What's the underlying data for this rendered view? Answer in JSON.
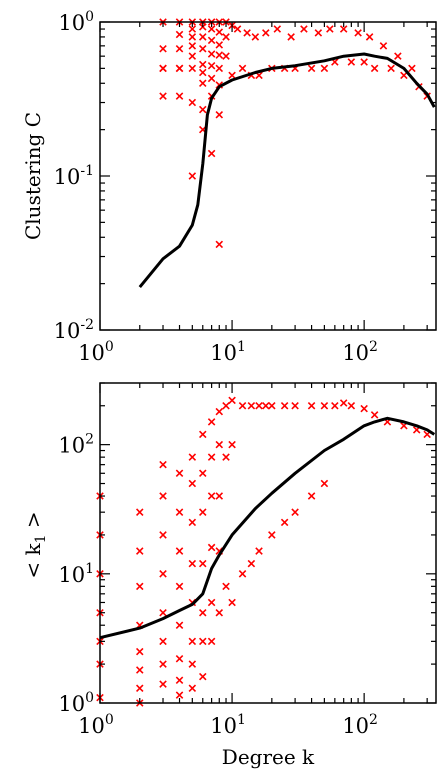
{
  "chart_data": [
    {
      "type": "scatter",
      "title": "",
      "xlabel": "",
      "ylabel": "Clustering C",
      "xscale": "log",
      "yscale": "log",
      "xlim": [
        1,
        350
      ],
      "ylim": [
        0.01,
        1
      ],
      "x_ticks": [
        {
          "base": "10",
          "exp": "0"
        },
        {
          "base": "10",
          "exp": "1"
        },
        {
          "base": "10",
          "exp": "2"
        }
      ],
      "y_ticks": [
        {
          "base": "10",
          "exp": "-2"
        },
        {
          "base": "10",
          "exp": "-1"
        },
        {
          "base": "10",
          "exp": "0"
        }
      ],
      "grid": false,
      "legend": "none",
      "series": [
        {
          "kind": "scatter",
          "marker": "x",
          "color": "#ff0000",
          "x": [
            3,
            3,
            3,
            3,
            3,
            4,
            4,
            4,
            4,
            4,
            4,
            5,
            5,
            5,
            5,
            5,
            5,
            5,
            5,
            6,
            6,
            6,
            6,
            6,
            6,
            6,
            6,
            6,
            7,
            7,
            7,
            7,
            7,
            7,
            7,
            7,
            8,
            8,
            8,
            8,
            8,
            8,
            8,
            8,
            9,
            9,
            9,
            10,
            10,
            11,
            12,
            13,
            14,
            15,
            16,
            18,
            20,
            22,
            25,
            28,
            30,
            35,
            40,
            45,
            50,
            55,
            60,
            70,
            80,
            90,
            100,
            110,
            120,
            140,
            160,
            180,
            200,
            230,
            260,
            300
          ],
          "y": [
            1.0,
            0.67,
            0.33,
            0.5,
            0.5,
            1.0,
            0.83,
            0.67,
            0.5,
            0.5,
            0.33,
            1.0,
            0.9,
            0.8,
            0.7,
            0.6,
            0.5,
            0.3,
            0.1,
            1.0,
            0.93,
            0.8,
            0.67,
            0.53,
            0.47,
            0.4,
            0.27,
            0.2,
            1.0,
            0.9,
            0.76,
            0.62,
            0.52,
            0.43,
            0.33,
            0.14,
            1.0,
            0.86,
            0.71,
            0.61,
            0.5,
            0.39,
            0.25,
            0.036,
            1.0,
            0.8,
            0.6,
            0.95,
            0.45,
            0.9,
            0.5,
            0.85,
            0.45,
            0.8,
            0.45,
            0.85,
            0.5,
            0.9,
            0.5,
            0.8,
            0.5,
            0.9,
            0.5,
            0.85,
            0.5,
            0.9,
            0.55,
            0.9,
            0.55,
            0.85,
            0.55,
            0.8,
            0.5,
            0.7,
            0.5,
            0.6,
            0.45,
            0.5,
            0.38,
            0.33
          ]
        },
        {
          "kind": "line",
          "color": "#000000",
          "x": [
            2,
            3,
            4,
            5,
            5.5,
            6,
            6.5,
            7,
            8,
            10,
            15,
            20,
            30,
            50,
            70,
            100,
            120,
            150,
            200,
            250,
            300,
            340
          ],
          "y": [
            0.019,
            0.029,
            0.035,
            0.048,
            0.065,
            0.12,
            0.25,
            0.32,
            0.38,
            0.42,
            0.47,
            0.5,
            0.52,
            0.56,
            0.6,
            0.62,
            0.6,
            0.58,
            0.5,
            0.4,
            0.34,
            0.28
          ]
        }
      ]
    },
    {
      "type": "scatter",
      "title": "",
      "xlabel": "Degree k",
      "ylabel": "< k",
      "ylabel_sub": "1",
      "ylabel_end": " >",
      "xscale": "log",
      "yscale": "log",
      "xlim": [
        1,
        350
      ],
      "ylim": [
        1,
        300
      ],
      "x_ticks": [
        {
          "base": "10",
          "exp": "0"
        },
        {
          "base": "10",
          "exp": "1"
        },
        {
          "base": "10",
          "exp": "2"
        }
      ],
      "y_ticks": [
        {
          "base": "10",
          "exp": "0"
        },
        {
          "base": "10",
          "exp": "1"
        },
        {
          "base": "10",
          "exp": "2"
        }
      ],
      "grid": false,
      "legend": "none",
      "series": [
        {
          "kind": "scatter",
          "marker": "x",
          "color": "#ff0000",
          "x": [
            1,
            1,
            1,
            1,
            1,
            1,
            1,
            2,
            2,
            2,
            2,
            2,
            2,
            2,
            2,
            3,
            3,
            3,
            3,
            3,
            3,
            3,
            3,
            4,
            4,
            4,
            4,
            4,
            4,
            4,
            4,
            5,
            5,
            5,
            5,
            5,
            5,
            5,
            5,
            6,
            6,
            6,
            6,
            6,
            6,
            6,
            7,
            7,
            7,
            7,
            7,
            7,
            8,
            8,
            8,
            8,
            8,
            9,
            9,
            9,
            10,
            10,
            10,
            12,
            12,
            14,
            14,
            16,
            16,
            18,
            20,
            20,
            25,
            25,
            30,
            30,
            40,
            40,
            50,
            50,
            60,
            70,
            80,
            100,
            120,
            150,
            200,
            250,
            300
          ],
          "y": [
            40,
            20,
            10,
            5,
            3,
            2,
            1.1,
            30,
            15,
            8,
            4,
            2.5,
            1.8,
            1.3,
            1.0,
            70,
            40,
            20,
            10,
            5,
            3,
            2,
            1.4,
            60,
            30,
            15,
            8,
            4,
            2.2,
            1.5,
            1.15,
            80,
            50,
            25,
            12,
            6,
            3,
            2,
            1.3,
            120,
            60,
            30,
            12,
            5,
            3,
            1.6,
            150,
            80,
            40,
            16,
            6,
            3,
            180,
            100,
            40,
            15,
            5,
            200,
            80,
            8,
            220,
            100,
            6,
            200,
            10,
            200,
            12,
            200,
            15,
            200,
            200,
            20,
            200,
            25,
            200,
            30,
            200,
            40,
            200,
            50,
            200,
            210,
            200,
            190,
            170,
            150,
            140,
            130,
            120
          ]
        },
        {
          "kind": "line",
          "color": "#000000",
          "x": [
            1,
            2,
            3,
            4,
            5,
            6,
            7,
            8,
            10,
            15,
            20,
            30,
            50,
            70,
            100,
            120,
            150,
            200,
            250,
            300,
            340
          ],
          "y": [
            3.2,
            3.8,
            4.5,
            5.2,
            5.8,
            7,
            11,
            14,
            20,
            32,
            42,
            60,
            90,
            110,
            140,
            150,
            160,
            150,
            140,
            130,
            120
          ]
        }
      ]
    }
  ]
}
